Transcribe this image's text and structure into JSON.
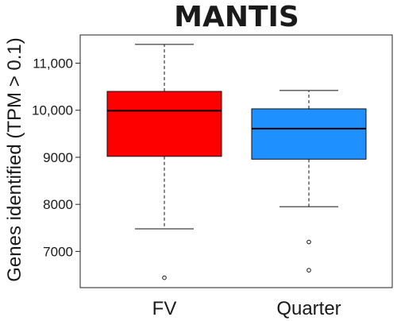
{
  "chart_data": {
    "type": "box",
    "title": "MANTIS",
    "ylabel": "Genes identified (TPM > 0.1)",
    "xlabel": "",
    "ylim": [
      6230,
      11600
    ],
    "yticks": [
      7000,
      8000,
      9000,
      10000,
      11000
    ],
    "ytick_labels": [
      "7000",
      "8000",
      "9000",
      "10,000",
      "11,000"
    ],
    "categories": [
      "FV",
      "Quarter"
    ],
    "boxes": [
      {
        "category": "FV",
        "color": "#ff0000",
        "q1": 9020,
        "median": 9990,
        "q3": 10400,
        "whisker_low": 7480,
        "whisker_high": 11400,
        "outliers": [
          6440
        ]
      },
      {
        "category": "Quarter",
        "color": "#1e90ff",
        "q1": 8960,
        "median": 9610,
        "q3": 10030,
        "whisker_low": 7950,
        "whisker_high": 10420,
        "outliers": [
          7200,
          6600
        ]
      }
    ],
    "grid": false,
    "legend": "none"
  }
}
